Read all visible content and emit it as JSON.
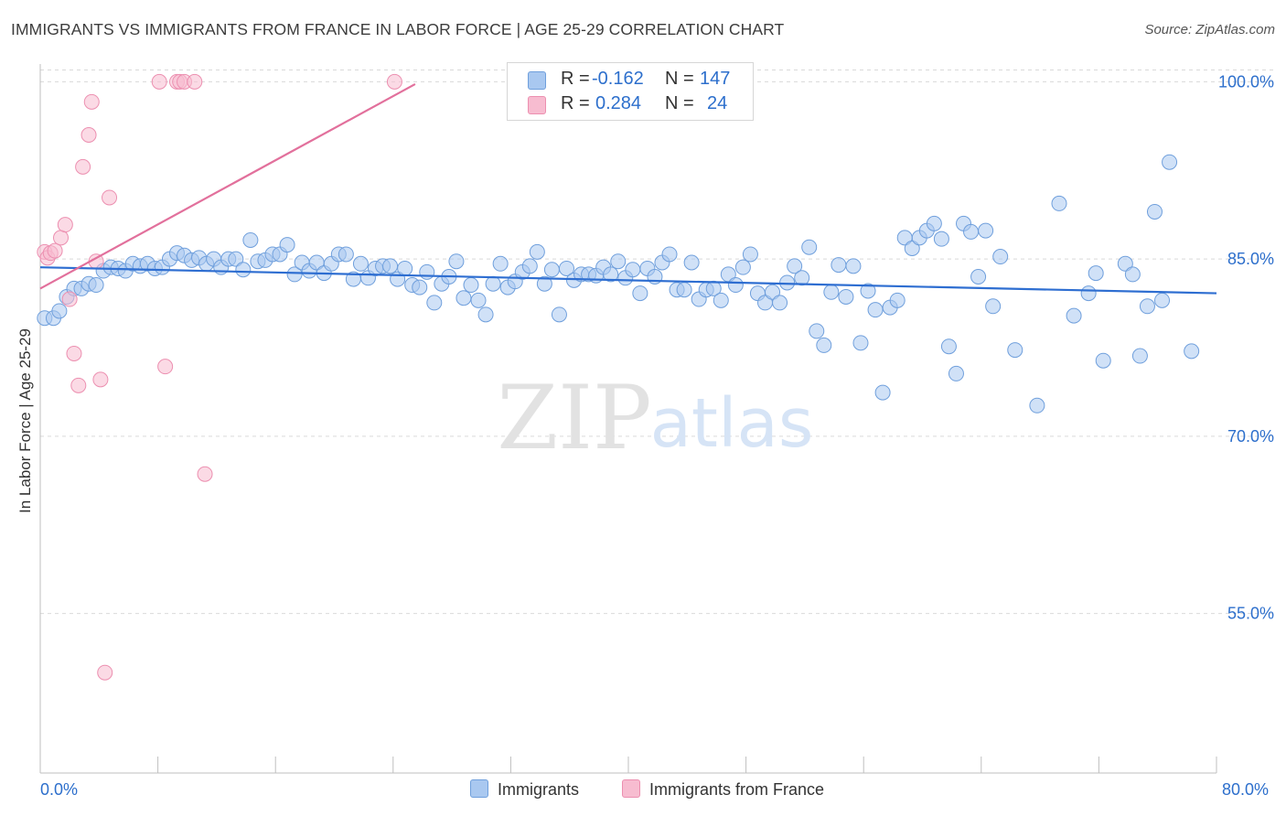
{
  "header": {
    "title": "IMMIGRANTS VS IMMIGRANTS FROM FRANCE IN LABOR FORCE | AGE 25-29 CORRELATION CHART",
    "source": "Source: ZipAtlas.com"
  },
  "watermark": {
    "zip": "ZIP",
    "atlas": "atlas"
  },
  "legend": {
    "r_label": "R =",
    "n_label": "N =",
    "rows": [
      {
        "r": "-0.162",
        "n": "147"
      },
      {
        "r": "0.284",
        "n": "24"
      }
    ]
  },
  "colors": {
    "blue_fill": "#a9c8f0",
    "blue_stroke": "#6f9fdc",
    "blue_line": "#2e6ed1",
    "pink_fill": "#f7bcd0",
    "pink_stroke": "#ec8fb0",
    "pink_line": "#e2709c",
    "tick_text": "#2d6fcc",
    "grid": "#d9d9d9"
  },
  "chart_data": {
    "type": "scatter",
    "title": "IMMIGRANTS VS IMMIGRANTS FROM FRANCE IN LABOR FORCE | AGE 25-29 CORRELATION CHART",
    "xlabel": "",
    "ylabel": "In Labor Force | Age 25-29",
    "xlim": [
      0,
      80
    ],
    "ylim": [
      41.5,
      101.5
    ],
    "x_tick_labels": [
      "0.0%",
      "80.0%"
    ],
    "y_ticks": [
      55,
      70,
      85,
      100
    ],
    "y_tick_labels": [
      "55.0%",
      "70.0%",
      "85.0%",
      "100.0%"
    ],
    "grid": true,
    "legend_position": "bottom",
    "series": [
      {
        "name": "Immigrants",
        "r": -0.162,
        "n": 147,
        "trend": {
          "x": [
            0,
            80
          ],
          "y": [
            84.3,
            82.1
          ]
        },
        "points": [
          [
            0.3,
            80.0
          ],
          [
            0.9,
            80.0
          ],
          [
            1.3,
            80.6
          ],
          [
            1.8,
            81.8
          ],
          [
            2.3,
            82.5
          ],
          [
            2.8,
            82.5
          ],
          [
            3.3,
            82.9
          ],
          [
            3.8,
            82.8
          ],
          [
            4.3,
            84.0
          ],
          [
            4.8,
            84.3
          ],
          [
            5.3,
            84.2
          ],
          [
            5.8,
            84.0
          ],
          [
            6.3,
            84.6
          ],
          [
            6.8,
            84.4
          ],
          [
            7.3,
            84.6
          ],
          [
            7.8,
            84.2
          ],
          [
            8.3,
            84.3
          ],
          [
            8.8,
            85.0
          ],
          [
            9.3,
            85.5
          ],
          [
            9.8,
            85.3
          ],
          [
            10.3,
            84.9
          ],
          [
            10.8,
            85.1
          ],
          [
            11.3,
            84.6
          ],
          [
            11.8,
            85.0
          ],
          [
            12.3,
            84.3
          ],
          [
            12.8,
            85.0
          ],
          [
            13.3,
            85.0
          ],
          [
            13.8,
            84.1
          ],
          [
            14.3,
            86.6
          ],
          [
            14.8,
            84.8
          ],
          [
            15.3,
            84.9
          ],
          [
            15.8,
            85.4
          ],
          [
            16.3,
            85.4
          ],
          [
            16.8,
            86.2
          ],
          [
            17.3,
            83.7
          ],
          [
            17.8,
            84.7
          ],
          [
            18.3,
            84.0
          ],
          [
            18.8,
            84.7
          ],
          [
            19.3,
            83.8
          ],
          [
            19.8,
            84.6
          ],
          [
            20.3,
            85.4
          ],
          [
            20.8,
            85.4
          ],
          [
            21.3,
            83.3
          ],
          [
            21.8,
            84.6
          ],
          [
            22.3,
            83.4
          ],
          [
            22.8,
            84.2
          ],
          [
            23.3,
            84.4
          ],
          [
            23.8,
            84.4
          ],
          [
            24.3,
            83.3
          ],
          [
            24.8,
            84.2
          ],
          [
            25.3,
            82.8
          ],
          [
            25.8,
            82.6
          ],
          [
            26.3,
            83.9
          ],
          [
            26.8,
            81.3
          ],
          [
            27.3,
            82.9
          ],
          [
            27.8,
            83.5
          ],
          [
            28.3,
            84.8
          ],
          [
            28.8,
            81.7
          ],
          [
            29.3,
            82.8
          ],
          [
            29.8,
            81.5
          ],
          [
            30.3,
            80.3
          ],
          [
            30.8,
            82.9
          ],
          [
            31.3,
            84.6
          ],
          [
            31.8,
            82.6
          ],
          [
            32.3,
            83.1
          ],
          [
            32.8,
            83.9
          ],
          [
            33.3,
            84.4
          ],
          [
            33.8,
            85.6
          ],
          [
            34.3,
            82.9
          ],
          [
            34.8,
            84.1
          ],
          [
            35.3,
            80.3
          ],
          [
            35.8,
            84.2
          ],
          [
            36.3,
            83.2
          ],
          [
            36.8,
            83.7
          ],
          [
            37.3,
            83.7
          ],
          [
            37.8,
            83.6
          ],
          [
            38.3,
            84.3
          ],
          [
            38.8,
            83.7
          ],
          [
            39.3,
            84.8
          ],
          [
            39.8,
            83.4
          ],
          [
            40.3,
            84.1
          ],
          [
            40.8,
            82.1
          ],
          [
            41.3,
            84.2
          ],
          [
            41.8,
            83.5
          ],
          [
            42.3,
            84.7
          ],
          [
            42.8,
            85.4
          ],
          [
            43.3,
            82.4
          ],
          [
            43.8,
            82.4
          ],
          [
            44.3,
            84.7
          ],
          [
            44.8,
            81.6
          ],
          [
            45.3,
            82.4
          ],
          [
            45.8,
            82.5
          ],
          [
            46.3,
            81.5
          ],
          [
            46.8,
            83.7
          ],
          [
            47.3,
            82.8
          ],
          [
            47.8,
            84.3
          ],
          [
            48.3,
            85.4
          ],
          [
            48.8,
            82.1
          ],
          [
            49.3,
            81.3
          ],
          [
            49.8,
            82.2
          ],
          [
            50.3,
            81.3
          ],
          [
            50.8,
            83.0
          ],
          [
            51.3,
            84.4
          ],
          [
            51.8,
            83.4
          ],
          [
            52.3,
            86.0
          ],
          [
            52.8,
            78.9
          ],
          [
            53.3,
            77.7
          ],
          [
            53.8,
            82.2
          ],
          [
            54.3,
            84.5
          ],
          [
            54.8,
            81.8
          ],
          [
            55.3,
            84.4
          ],
          [
            55.8,
            77.9
          ],
          [
            56.3,
            82.3
          ],
          [
            56.8,
            80.7
          ],
          [
            57.3,
            73.7
          ],
          [
            57.8,
            80.9
          ],
          [
            58.3,
            81.5
          ],
          [
            58.8,
            86.8
          ],
          [
            59.3,
            85.9
          ],
          [
            59.8,
            86.8
          ],
          [
            60.3,
            87.4
          ],
          [
            60.8,
            88.0
          ],
          [
            61.3,
            86.7
          ],
          [
            61.8,
            77.6
          ],
          [
            62.3,
            75.3
          ],
          [
            62.8,
            88.0
          ],
          [
            63.3,
            87.3
          ],
          [
            63.8,
            83.5
          ],
          [
            64.3,
            87.4
          ],
          [
            64.8,
            81.0
          ],
          [
            65.3,
            85.2
          ],
          [
            66.3,
            77.3
          ],
          [
            67.8,
            72.6
          ],
          [
            69.3,
            89.7
          ],
          [
            70.3,
            80.2
          ],
          [
            71.3,
            82.1
          ],
          [
            71.8,
            83.8
          ],
          [
            72.3,
            76.4
          ],
          [
            73.8,
            84.6
          ],
          [
            74.3,
            83.7
          ],
          [
            74.8,
            76.8
          ],
          [
            75.3,
            81.0
          ],
          [
            75.8,
            89.0
          ],
          [
            76.3,
            81.5
          ],
          [
            76.8,
            93.2
          ],
          [
            78.3,
            77.2
          ]
        ]
      },
      {
        "name": "Immigrants from France",
        "r": 0.284,
        "n": 24,
        "trend": {
          "x": [
            0,
            25.5
          ],
          "y": [
            82.5,
            99.8
          ]
        },
        "points": [
          [
            0.3,
            85.6
          ],
          [
            0.5,
            85.1
          ],
          [
            0.7,
            85.5
          ],
          [
            1.0,
            85.7
          ],
          [
            1.4,
            86.8
          ],
          [
            1.7,
            87.9
          ],
          [
            2.0,
            81.6
          ],
          [
            2.3,
            77.0
          ],
          [
            2.6,
            74.3
          ],
          [
            2.9,
            92.8
          ],
          [
            3.3,
            95.5
          ],
          [
            3.5,
            98.3
          ],
          [
            3.8,
            84.8
          ],
          [
            4.1,
            74.8
          ],
          [
            4.4,
            50.0
          ],
          [
            4.7,
            90.2
          ],
          [
            8.1,
            100.0
          ],
          [
            8.5,
            75.9
          ],
          [
            9.3,
            100.0
          ],
          [
            9.5,
            100.0
          ],
          [
            9.8,
            100.0
          ],
          [
            10.5,
            100.0
          ],
          [
            11.2,
            66.8
          ],
          [
            24.1,
            100.0
          ]
        ]
      }
    ]
  }
}
